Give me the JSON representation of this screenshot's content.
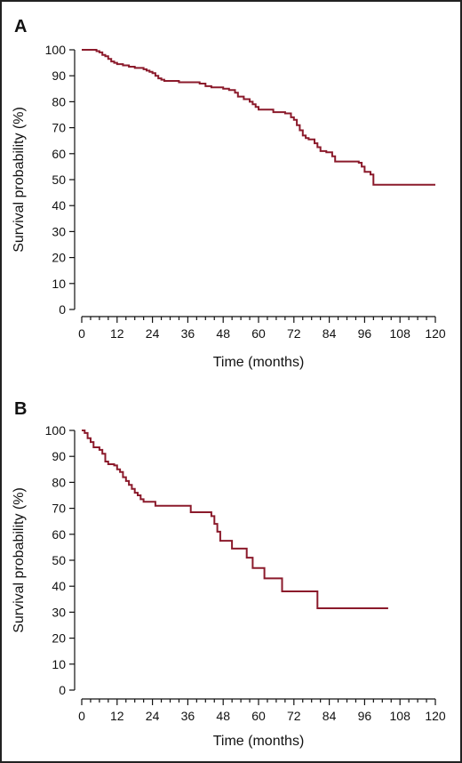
{
  "chart_data": [
    {
      "type": "line",
      "panel_label": "A",
      "xlabel": "Time (months)",
      "ylabel": "Survival probability (%)",
      "xlim": [
        0,
        120
      ],
      "ylim": [
        0,
        100
      ],
      "x_ticks": [
        0,
        12,
        24,
        36,
        48,
        60,
        72,
        84,
        96,
        108,
        120
      ],
      "y_ticks": [
        0,
        10,
        20,
        30,
        40,
        50,
        60,
        70,
        80,
        90,
        100
      ],
      "line_color": "#8b1a2b",
      "series": [
        {
          "step": true,
          "points": [
            [
              0,
              100
            ],
            [
              4,
              100
            ],
            [
              5,
              99.5
            ],
            [
              6,
              99
            ],
            [
              7,
              98
            ],
            [
              8,
              97.5
            ],
            [
              9,
              96.5
            ],
            [
              10,
              95.5
            ],
            [
              11,
              95
            ],
            [
              12,
              94.5
            ],
            [
              14,
              94
            ],
            [
              16,
              93.5
            ],
            [
              18,
              93
            ],
            [
              21,
              92.5
            ],
            [
              22,
              92
            ],
            [
              23,
              91.5
            ],
            [
              24,
              91
            ],
            [
              25,
              90
            ],
            [
              26,
              89
            ],
            [
              27,
              88.5
            ],
            [
              28,
              88
            ],
            [
              33,
              87.5
            ],
            [
              40,
              87
            ],
            [
              42,
              86
            ],
            [
              44,
              85.5
            ],
            [
              48,
              85
            ],
            [
              50,
              84.5
            ],
            [
              52,
              83.5
            ],
            [
              53,
              82
            ],
            [
              55,
              81
            ],
            [
              57,
              80
            ],
            [
              58,
              79
            ],
            [
              59,
              78
            ],
            [
              60,
              77
            ],
            [
              65,
              76
            ],
            [
              69,
              75.5
            ],
            [
              71,
              74
            ],
            [
              72,
              73
            ],
            [
              73,
              71
            ],
            [
              74,
              69
            ],
            [
              75,
              67
            ],
            [
              76,
              66
            ],
            [
              77,
              65.5
            ],
            [
              79,
              64
            ],
            [
              80,
              62.5
            ],
            [
              81,
              61
            ],
            [
              83,
              60.5
            ],
            [
              85,
              59
            ],
            [
              86,
              57
            ],
            [
              94,
              56.5
            ],
            [
              95,
              55
            ],
            [
              96,
              53
            ],
            [
              98,
              52
            ],
            [
              99,
              48
            ],
            [
              120,
              48
            ]
          ]
        }
      ]
    },
    {
      "type": "line",
      "panel_label": "B",
      "xlabel": "Time (months)",
      "ylabel": "Survival probability (%)",
      "xlim": [
        0,
        120
      ],
      "ylim": [
        0,
        100
      ],
      "x_ticks": [
        0,
        12,
        24,
        36,
        48,
        60,
        72,
        84,
        96,
        108,
        120
      ],
      "y_ticks": [
        0,
        10,
        20,
        30,
        40,
        50,
        60,
        70,
        80,
        90,
        100
      ],
      "line_color": "#8b1a2b",
      "series": [
        {
          "step": true,
          "points": [
            [
              0,
              100
            ],
            [
              1,
              99
            ],
            [
              2,
              97
            ],
            [
              3,
              95.5
            ],
            [
              4,
              93.5
            ],
            [
              6,
              92.5
            ],
            [
              7,
              91
            ],
            [
              8,
              88
            ],
            [
              9,
              87
            ],
            [
              11,
              86.5
            ],
            [
              12,
              85
            ],
            [
              13,
              84
            ],
            [
              14,
              82
            ],
            [
              15,
              80.5
            ],
            [
              16,
              79
            ],
            [
              17,
              77.5
            ],
            [
              18,
              76
            ],
            [
              19,
              75
            ],
            [
              20,
              73.5
            ],
            [
              21,
              72.5
            ],
            [
              25,
              71
            ],
            [
              37,
              68.5
            ],
            [
              44,
              67
            ],
            [
              45,
              64
            ],
            [
              46,
              61
            ],
            [
              47,
              57.5
            ],
            [
              51,
              54.5
            ],
            [
              56,
              51
            ],
            [
              58,
              47
            ],
            [
              62,
              43
            ],
            [
              68,
              38
            ],
            [
              80,
              31.5
            ],
            [
              104,
              31.5
            ]
          ]
        }
      ]
    }
  ]
}
